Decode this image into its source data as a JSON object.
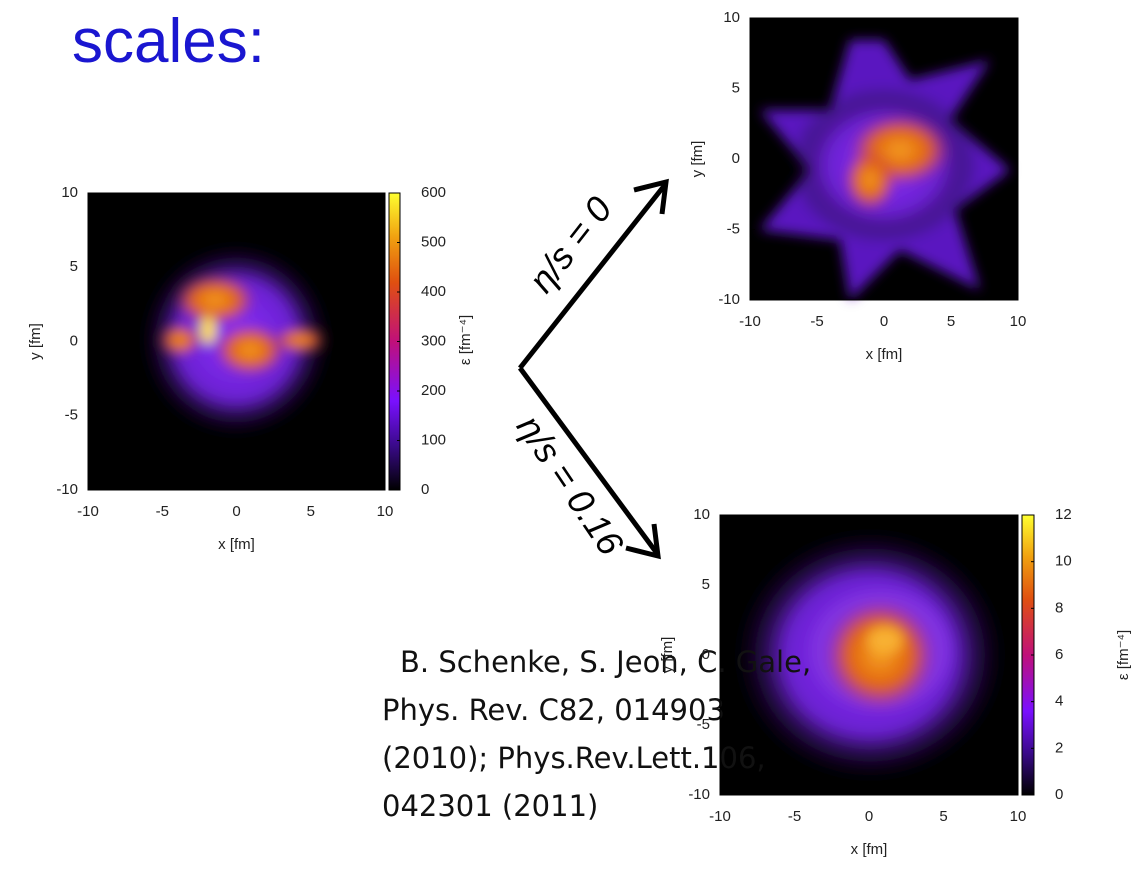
{
  "title": "scales:",
  "plots": [
    {
      "xlabel": "x [fm]",
      "ylabel": "y [fm]",
      "xticks": [
        -10,
        -5,
        0,
        5,
        10
      ],
      "yticks": [
        -10,
        -5,
        0,
        5,
        10
      ],
      "colorbar": {
        "label": "ε [fm⁻⁴]",
        "ticks": [
          0,
          100,
          200,
          300,
          400,
          500,
          600
        ]
      }
    },
    {
      "xlabel": "x [fm]",
      "ylabel": "y [fm]",
      "xticks": [
        -10,
        -5,
        0,
        5,
        10
      ],
      "yticks": [
        -10,
        -5,
        0,
        5,
        10
      ]
    },
    {
      "xlabel": "x [fm]",
      "ylabel": "y [fm]",
      "xticks": [
        -10,
        -5,
        0,
        5,
        10
      ],
      "yticks": [
        -10,
        -5,
        0,
        5,
        10
      ],
      "colorbar": {
        "label": "ε [fm⁻⁴]",
        "ticks": [
          0,
          2,
          4,
          6,
          8,
          10,
          12
        ]
      }
    }
  ],
  "arrows": [
    {
      "label": "η/s = 0"
    },
    {
      "label": "η/s = 0.16"
    }
  ],
  "citation": [
    "B. Schenke, S. Jeon, C. Gale,",
    "Phys. Rev. C82, 014903",
    "(2010); Phys.Rev.Lett.106,",
    "042301 (2011)"
  ]
}
